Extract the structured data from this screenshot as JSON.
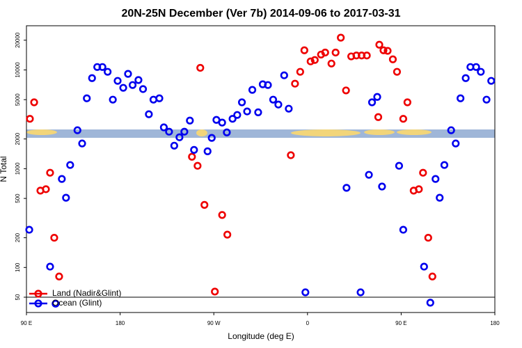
{
  "chart_data": {
    "type": "scatter",
    "title": "20N-25N December (Ver 7b)   2014-09-06 to 2017-03-31",
    "x_label": "Longitude (deg E)",
    "y_label": "N Total",
    "log_y": true,
    "xlim": [
      90,
      540
    ],
    "ylim": [
      35,
      28000
    ],
    "xticks": [
      {
        "value": 90,
        "label": "90 E"
      },
      180,
      {
        "value": 270,
        "label": "90 W"
      },
      {
        "value": 360,
        "label": "0"
      },
      {
        "value": 450,
        "label": "90 E"
      },
      {
        "value": 540,
        "label": "180"
      }
    ],
    "yticks": [
      50,
      100,
      200,
      500,
      1000,
      2000,
      5000,
      10000,
      20000
    ],
    "hline": 50,
    "legend": "bottom-left",
    "series": [
      {
        "name": "Land (Nadir&Glint)",
        "color": "#ee0000",
        "x": [
          93.3,
          97.4,
          103.4,
          108.7,
          112.7,
          116.7,
          121.4,
          257,
          249,
          254.4,
          261,
          271,
          278,
          283,
          344,
          348,
          353,
          357,
          363,
          367,
          373,
          377,
          383,
          387,
          392,
          397,
          402,
          407,
          412,
          417,
          428,
          429,
          433,
          437,
          442,
          446,
          452,
          456,
          462,
          467,
          471,
          476,
          480
        ],
        "values": [
          3200,
          4700,
          600,
          620,
          910,
          200,
          81,
          10500,
          1320,
          1070,
          430,
          57,
          340,
          215,
          1370,
          7260,
          9570,
          15800,
          12200,
          12600,
          14300,
          15000,
          11600,
          15000,
          21200,
          6200,
          13700,
          14000,
          14000,
          14000,
          3330,
          18000,
          15800,
          15600,
          12800,
          9570,
          3200,
          4700,
          600,
          620,
          910,
          200,
          81
        ]
      },
      {
        "name": "Ocean (Glint)",
        "color": "#0000ee",
        "x": [
          92.7,
          112.7,
          118,
          124,
          128,
          132,
          139,
          143.5,
          148,
          153,
          158,
          163,
          168,
          173,
          177.6,
          183,
          187.6,
          192,
          197.6,
          202,
          207.6,
          212,
          217.7,
          222,
          227,
          232,
          237,
          241.7,
          247,
          251,
          264,
          268,
          272.5,
          278,
          282.5,
          288,
          292.5,
          297,
          302,
          307,
          312.6,
          317,
          322,
          327,
          332,
          337.6,
          342,
          358,
          397.5,
          411,
          419,
          422,
          427,
          431.6,
          448,
          452,
          472,
          478,
          483,
          487,
          491.5,
          498,
          502.4,
          507,
          512,
          516.5,
          522,
          526.5,
          532,
          536.5
        ],
        "values": [
          241,
          102,
          43,
          787,
          508,
          1090,
          2450,
          1800,
          5160,
          8260,
          10700,
          10700,
          9570,
          5000,
          7750,
          6590,
          9120,
          7030,
          7900,
          6400,
          3560,
          5000,
          5160,
          2620,
          2370,
          1710,
          2080,
          2370,
          3070,
          1550,
          1500,
          2050,
          3120,
          2930,
          2330,
          3200,
          3500,
          4700,
          3800,
          6280,
          3720,
          7150,
          7030,
          5000,
          4460,
          8820,
          4050,
          56,
          640,
          56,
          867,
          4700,
          5330,
          660,
          1070,
          241,
          102,
          44,
          787,
          508,
          1090,
          2450,
          1800,
          5160,
          8260,
          10700,
          10700,
          9570,
          5000,
          7750
        ]
      }
    ]
  }
}
